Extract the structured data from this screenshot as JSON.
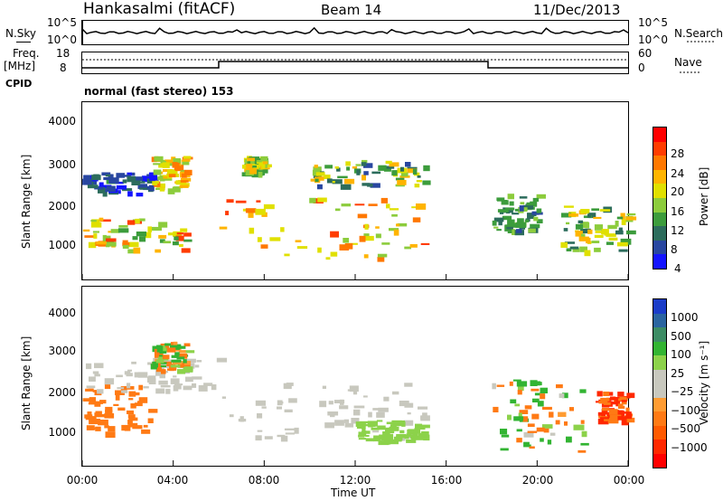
{
  "header": {
    "title": "Hankasalmi (fitACF)",
    "beam": "Beam 14",
    "date": "11/Dec/2013"
  },
  "top_rows": {
    "nsky_label": "N.Sky",
    "nsky_ticks": [
      "10^5",
      "10^0"
    ],
    "nsearch_label": "N.Search",
    "nsearch_ticks": [
      "10^5",
      "10^0"
    ],
    "freq_label": "Freq.",
    "freq_unit": "[MHz]",
    "freq_ticks": [
      "18",
      "8"
    ],
    "nave_label": "Nave",
    "nave_ticks": [
      "60",
      "0"
    ],
    "cpid_label": "CPID",
    "cpid_text": "normal (fast stereo) 153"
  },
  "axes": {
    "ylabel": "Slant Range [km]",
    "yticks": [
      "4000",
      "3000",
      "2000",
      "1000"
    ],
    "xlabel": "Time UT",
    "xticks": [
      "00:00",
      "04:00",
      "08:00",
      "12:00",
      "16:00",
      "20:00",
      "00:00"
    ]
  },
  "power_colorbar": {
    "label": "Power [dB]",
    "ticks": [
      "28",
      "24",
      "20",
      "16",
      "12",
      "8",
      "4"
    ],
    "colors": [
      "#ff0000",
      "#ff3c00",
      "#ff7800",
      "#ffb400",
      "#e0e000",
      "#8ccc3c",
      "#3c9c3c",
      "#2c6c5c",
      "#2846a0",
      "#1414ff"
    ]
  },
  "velocity_colorbar": {
    "label": "Velocity [m s⁻¹]",
    "ticks": [
      "1000",
      "500",
      "100",
      "25",
      "−25",
      "−100",
      "−500",
      "−1000"
    ],
    "colors": [
      "#1a3cc8",
      "#2a64a0",
      "#3c8c64",
      "#32b432",
      "#8cd24a",
      "#c8c8be",
      "#c8c8be",
      "#ff9c32",
      "#ff7a14",
      "#ff5a00",
      "#ff2800",
      "#ff0000"
    ]
  },
  "chart_data": [
    {
      "type": "heatmap",
      "title": "Power",
      "x_range": [
        "00:00",
        "00:00"
      ],
      "ylim": [
        200,
        4500
      ],
      "units": "dB",
      "color_scale": [
        4,
        32
      ],
      "features": [
        {
          "t_start": "00:00",
          "t_end": "04:30",
          "range_km": [
            900,
            1700
          ],
          "power_db": [
            12,
            30
          ]
        },
        {
          "t_start": "00:00",
          "t_end": "03:00",
          "range_km": [
            2300,
            2800
          ],
          "power_db": [
            4,
            12
          ]
        },
        {
          "t_start": "03:00",
          "t_end": "04:30",
          "range_km": [
            2400,
            3200
          ],
          "power_db": [
            16,
            26
          ]
        },
        {
          "t_start": "06:00",
          "t_end": "15:00",
          "range_km": [
            700,
            2200
          ],
          "power_db": [
            16,
            30
          ]
        },
        {
          "t_start": "07:00",
          "t_end": "08:00",
          "range_km": [
            2800,
            3200
          ],
          "power_db": [
            12,
            24
          ]
        },
        {
          "t_start": "10:00",
          "t_end": "15:00",
          "range_km": [
            2500,
            3100
          ],
          "power_db": [
            8,
            24
          ]
        },
        {
          "t_start": "18:00",
          "t_end": "20:00",
          "range_km": [
            1400,
            2300
          ],
          "power_db": [
            8,
            16
          ]
        },
        {
          "t_start": "21:00",
          "t_end": "24:00",
          "range_km": [
            900,
            2000
          ],
          "power_db": [
            8,
            24
          ]
        }
      ]
    },
    {
      "type": "heatmap",
      "title": "Velocity",
      "x_range": [
        "00:00",
        "00:00"
      ],
      "ylim": [
        200,
        4500
      ],
      "units": "m s-1",
      "color_scale": [
        -1000,
        1000
      ],
      "features": [
        {
          "t_start": "00:00",
          "t_end": "03:00",
          "range_km": [
            1000,
            2200
          ],
          "velocity": [
            -500,
            -100
          ]
        },
        {
          "t_start": "00:00",
          "t_end": "06:00",
          "range_km": [
            2000,
            2800
          ],
          "velocity": [
            -25,
            25
          ]
        },
        {
          "t_start": "03:00",
          "t_end": "04:30",
          "range_km": [
            2500,
            3200
          ],
          "velocity": [
            -500,
            500
          ]
        },
        {
          "t_start": "06:00",
          "t_end": "15:00",
          "range_km": [
            900,
            2200
          ],
          "velocity": [
            -25,
            25
          ]
        },
        {
          "t_start": "12:00",
          "t_end": "15:00",
          "range_km": [
            800,
            1300
          ],
          "velocity": [
            25,
            100
          ]
        },
        {
          "t_start": "18:00",
          "t_end": "22:00",
          "range_km": [
            500,
            2300
          ],
          "velocity": [
            -500,
            500
          ]
        },
        {
          "t_start": "22:30",
          "t_end": "24:00",
          "range_km": [
            1300,
            2000
          ],
          "velocity": [
            -1000,
            -100
          ]
        }
      ]
    }
  ]
}
